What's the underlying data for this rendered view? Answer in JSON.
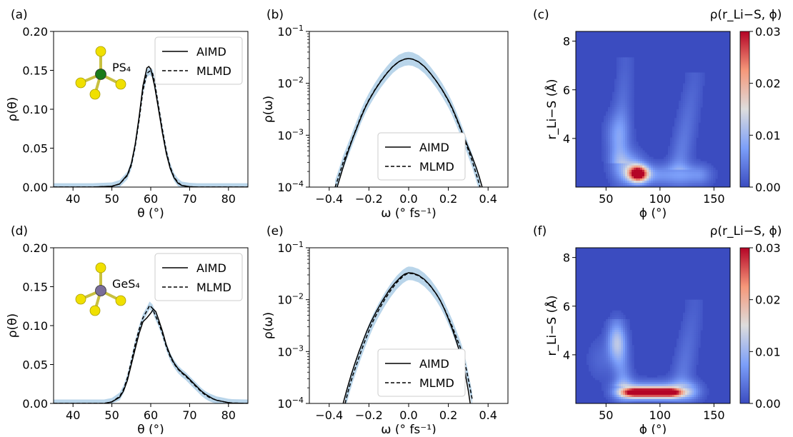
{
  "colors": {
    "aimd": "#000000",
    "mlmd": "#000000",
    "uncertainty_band": "#7fb3d8",
    "heatmap_low": "#3b4cc0",
    "heatmap_mid": "#dddddd",
    "heatmap_high": "#b40426",
    "sulfur_atom": "#f0e000",
    "phosphorus_atom": "#1a7a1a",
    "germanium_atom": "#7a6e9a"
  },
  "chart_data": [
    {
      "id": "a",
      "panel_label": "(a)",
      "type": "line",
      "xlabel": "θ (°)",
      "ylabel": "ρ(θ)",
      "xlim": [
        35,
        85
      ],
      "ylim": [
        0,
        0.2
      ],
      "xticks": [
        40,
        50,
        60,
        70,
        80
      ],
      "yticks": [
        0.0,
        0.05,
        0.1,
        0.15,
        0.2
      ],
      "xtick_labels": [
        "40",
        "50",
        "60",
        "70",
        "80"
      ],
      "ytick_labels": [
        "0.00",
        "0.05",
        "0.10",
        "0.15",
        "0.20"
      ],
      "molecule_label": "PS₄",
      "molecule_center": "phosphorus",
      "legend": {
        "position": "top-right",
        "entries": [
          "AIMD",
          "MLMD"
        ]
      },
      "series": [
        {
          "name": "AIMD",
          "style": "solid",
          "x": [
            35,
            45,
            50,
            52,
            54,
            55,
            56,
            57,
            58,
            59,
            59.5,
            60,
            61,
            62,
            63,
            64,
            65,
            66,
            67,
            68,
            70,
            72,
            85
          ],
          "y": [
            0,
            0,
            0.001,
            0.004,
            0.016,
            0.03,
            0.055,
            0.09,
            0.13,
            0.153,
            0.155,
            0.152,
            0.13,
            0.1,
            0.07,
            0.043,
            0.024,
            0.012,
            0.005,
            0.002,
            0.0005,
            0,
            0
          ]
        },
        {
          "name": "MLMD",
          "style": "dashed",
          "x": [
            35,
            45,
            50,
            52,
            54,
            55,
            56,
            57,
            58,
            59,
            59.7,
            60.5,
            61,
            62,
            63,
            64,
            65,
            66,
            67,
            68,
            70,
            72,
            85
          ],
          "y": [
            0,
            0,
            0.001,
            0.004,
            0.015,
            0.028,
            0.052,
            0.086,
            0.124,
            0.146,
            0.149,
            0.146,
            0.135,
            0.104,
            0.074,
            0.046,
            0.026,
            0.013,
            0.006,
            0.002,
            0.0005,
            0,
            0
          ]
        }
      ]
    },
    {
      "id": "b",
      "panel_label": "(b)",
      "type": "line",
      "yscale": "log",
      "xlabel": "ω (° fs⁻¹)",
      "ylabel": "ρ(ω)",
      "xlim": [
        -0.5,
        0.5
      ],
      "ylim": [
        0.0001,
        0.1
      ],
      "xticks": [
        -0.4,
        -0.2,
        0.0,
        0.2,
        0.4
      ],
      "xtick_labels": [
        "−0.4",
        "−0.2",
        "0.0",
        "0.2",
        "0.4"
      ],
      "yticks": [
        0.0001,
        0.001,
        0.01,
        0.1
      ],
      "ytick_base": "10",
      "ytick_exponents": [
        "−4",
        "−3",
        "−2",
        "−1"
      ],
      "legend": {
        "position": "lower-center",
        "entries": [
          "AIMD",
          "MLMD"
        ]
      },
      "series": [
        {
          "name": "AIMD",
          "style": "solid",
          "x": [
            -0.36,
            -0.34,
            -0.32,
            -0.3,
            -0.28,
            -0.26,
            -0.24,
            -0.22,
            -0.2,
            -0.17,
            -0.14,
            -0.11,
            -0.08,
            -0.05,
            -0.02,
            0.0,
            0.02,
            0.05,
            0.08,
            0.11,
            0.14,
            0.17,
            0.2,
            0.22,
            0.24,
            0.26,
            0.28,
            0.3,
            0.32,
            0.34,
            0.355,
            0.37
          ],
          "y": [
            0.0001,
            0.00018,
            0.00032,
            0.00055,
            0.0009,
            0.0014,
            0.0022,
            0.0033,
            0.0047,
            0.0074,
            0.011,
            0.0155,
            0.021,
            0.026,
            0.0292,
            0.03,
            0.0292,
            0.026,
            0.021,
            0.0155,
            0.011,
            0.0074,
            0.0047,
            0.0033,
            0.0022,
            0.0014,
            0.0009,
            0.00058,
            0.00038,
            0.00024,
            0.00016,
            0.0001
          ]
        },
        {
          "name": "MLMD",
          "style": "dashed",
          "x": [
            -0.37,
            -0.35,
            -0.33,
            -0.3,
            -0.28,
            -0.26,
            -0.24,
            -0.22,
            -0.2,
            -0.17,
            -0.14,
            -0.11,
            -0.08,
            -0.05,
            -0.02,
            0.0,
            0.02,
            0.05,
            0.08,
            0.11,
            0.14,
            0.17,
            0.2,
            0.22,
            0.24,
            0.26,
            0.28,
            0.3,
            0.32,
            0.34,
            0.36
          ],
          "y": [
            0.0001,
            0.00017,
            0.0003,
            0.00058,
            0.00093,
            0.00145,
            0.0023,
            0.0034,
            0.0048,
            0.0075,
            0.0112,
            0.0157,
            0.0212,
            0.0262,
            0.0293,
            0.03,
            0.0292,
            0.0259,
            0.0209,
            0.0154,
            0.0109,
            0.0073,
            0.0046,
            0.0032,
            0.0021,
            0.00135,
            0.00085,
            0.00052,
            0.00032,
            0.00018,
            0.0001
          ]
        }
      ]
    },
    {
      "id": "c",
      "panel_label": "(c)",
      "type": "heatmap",
      "xlabel": "ϕ (°)",
      "ylabel": "r_Li−S (Å)",
      "xlim": [
        22,
        165
      ],
      "ylim": [
        2.0,
        8.4
      ],
      "xticks": [
        50,
        100,
        150
      ],
      "xtick_labels": [
        "50",
        "100",
        "150"
      ],
      "yticks": [
        4,
        6,
        8
      ],
      "ytick_labels": [
        "4",
        "6",
        "8"
      ],
      "colorbar": {
        "title": "ρ(r_Li−S, ϕ)",
        "range": [
          0,
          0.03
        ],
        "ticks": [
          0.0,
          0.01,
          0.02,
          0.03
        ],
        "tick_labels": [
          "0.00",
          "0.01",
          "0.02",
          "0.03"
        ]
      },
      "features": [
        {
          "kind": "blob",
          "phi": 80,
          "r": 2.55,
          "sphi": 6,
          "sr": 0.22,
          "amp": 1.0
        },
        {
          "kind": "blob",
          "phi": 70,
          "r": 2.85,
          "sphi": 10,
          "sr": 0.45,
          "amp": 0.28
        },
        {
          "kind": "band",
          "phi0": 80,
          "phi1": 135,
          "r": 2.5,
          "sr": 0.3,
          "amp": 0.22
        },
        {
          "kind": "arm",
          "from": [
            62,
            3.3
          ],
          "to": [
            68,
            7.0
          ],
          "width": 6,
          "amp": 0.16
        },
        {
          "kind": "arm",
          "from": [
            118,
            3.0
          ],
          "to": [
            132,
            6.4
          ],
          "width": 7,
          "amp": 0.16
        },
        {
          "kind": "blob",
          "phi": 60,
          "r": 4.2,
          "sphi": 8,
          "sr": 0.6,
          "amp": 0.15
        }
      ]
    },
    {
      "id": "d",
      "panel_label": "(d)",
      "type": "line",
      "xlabel": "θ (°)",
      "ylabel": "ρ(θ)",
      "xlim": [
        35,
        85
      ],
      "ylim": [
        0,
        0.2
      ],
      "xticks": [
        40,
        50,
        60,
        70,
        80
      ],
      "yticks": [
        0.0,
        0.05,
        0.1,
        0.15,
        0.2
      ],
      "xtick_labels": [
        "40",
        "50",
        "60",
        "70",
        "80"
      ],
      "ytick_labels": [
        "0.00",
        "0.05",
        "0.10",
        "0.15",
        "0.20"
      ],
      "molecule_label": "GeS₄",
      "molecule_center": "germanium",
      "legend": {
        "position": "top-right",
        "entries": [
          "AIMD",
          "MLMD"
        ]
      },
      "series": [
        {
          "name": "AIMD",
          "style": "solid",
          "x": [
            35,
            48,
            50,
            52,
            53,
            54,
            55,
            56,
            57,
            58,
            59,
            60,
            60.7,
            61.3,
            62,
            63,
            64,
            65,
            66,
            67,
            68,
            69,
            70,
            71,
            72,
            73,
            74,
            75,
            76,
            77,
            78,
            79,
            80,
            81,
            85
          ],
          "y": [
            0,
            0,
            0.002,
            0.008,
            0.016,
            0.03,
            0.05,
            0.07,
            0.09,
            0.105,
            0.11,
            0.116,
            0.121,
            0.118,
            0.108,
            0.093,
            0.075,
            0.062,
            0.052,
            0.045,
            0.04,
            0.036,
            0.031,
            0.026,
            0.021,
            0.016,
            0.012,
            0.009,
            0.006,
            0.004,
            0.003,
            0.002,
            0.001,
            0.0005,
            0
          ]
        },
        {
          "name": "MLMD",
          "style": "dashed",
          "x": [
            35,
            48,
            50,
            52,
            53,
            54,
            55,
            56,
            57,
            58,
            59,
            59.7,
            60.5,
            61,
            62,
            63,
            64,
            65,
            66,
            67,
            68,
            69,
            70,
            71,
            72,
            73,
            74,
            75,
            76,
            77,
            78,
            79,
            80,
            81,
            85
          ],
          "y": [
            0,
            0,
            0.002,
            0.009,
            0.018,
            0.033,
            0.054,
            0.076,
            0.095,
            0.11,
            0.119,
            0.126,
            0.122,
            0.115,
            0.104,
            0.09,
            0.073,
            0.06,
            0.051,
            0.044,
            0.039,
            0.035,
            0.03,
            0.025,
            0.02,
            0.015,
            0.011,
            0.008,
            0.006,
            0.004,
            0.003,
            0.002,
            0.001,
            0.0005,
            0
          ]
        }
      ]
    },
    {
      "id": "e",
      "panel_label": "(e)",
      "type": "line",
      "yscale": "log",
      "xlabel": "ω (° fs⁻¹)",
      "ylabel": "ρ(ω)",
      "xlim": [
        -0.5,
        0.5
      ],
      "ylim": [
        0.0001,
        0.1
      ],
      "xticks": [
        -0.4,
        -0.2,
        0.0,
        0.2,
        0.4
      ],
      "xtick_labels": [
        "−0.4",
        "−0.2",
        "0.0",
        "0.2",
        "0.4"
      ],
      "yticks": [
        0.0001,
        0.001,
        0.01,
        0.1
      ],
      "ytick_base": "10",
      "ytick_exponents": [
        "−4",
        "−3",
        "−2",
        "−1"
      ],
      "legend": {
        "position": "lower-center",
        "entries": [
          "AIMD",
          "MLMD"
        ]
      },
      "series": [
        {
          "name": "AIMD",
          "style": "solid",
          "x": [
            -0.33,
            -0.31,
            -0.29,
            -0.27,
            -0.25,
            -0.23,
            -0.21,
            -0.19,
            -0.16,
            -0.13,
            -0.1,
            -0.07,
            -0.04,
            -0.02,
            0.0,
            0.02,
            0.05,
            0.08,
            0.11,
            0.14,
            0.16,
            0.18,
            0.2,
            0.22,
            0.24,
            0.26,
            0.28,
            0.3,
            0.31
          ],
          "y": [
            0.0001,
            0.00019,
            0.00035,
            0.0006,
            0.001,
            0.0016,
            0.0025,
            0.0037,
            0.0062,
            0.0098,
            0.0148,
            0.0208,
            0.0272,
            0.0312,
            0.033,
            0.0325,
            0.0295,
            0.0245,
            0.0185,
            0.0128,
            0.0095,
            0.0066,
            0.0043,
            0.0027,
            0.0016,
            0.0009,
            0.00048,
            0.00018,
            0.0001
          ]
        },
        {
          "name": "MLMD",
          "style": "dashed",
          "x": [
            -0.32,
            -0.3,
            -0.28,
            -0.26,
            -0.24,
            -0.22,
            -0.2,
            -0.18,
            -0.15,
            -0.12,
            -0.09,
            -0.06,
            -0.03,
            -0.01,
            0.0,
            0.02,
            0.05,
            0.08,
            0.11,
            0.14,
            0.16,
            0.18,
            0.2,
            0.22,
            0.24,
            0.26,
            0.28,
            0.3,
            0.32
          ],
          "y": [
            0.0001,
            0.0002,
            0.00036,
            0.0006,
            0.001,
            0.0016,
            0.0025,
            0.0038,
            0.0064,
            0.0101,
            0.0152,
            0.0214,
            0.0278,
            0.0312,
            0.0322,
            0.0318,
            0.029,
            0.024,
            0.0182,
            0.0127,
            0.0095,
            0.0067,
            0.0045,
            0.003,
            0.0019,
            0.0012,
            0.0007,
            0.0003,
            0.00012
          ]
        }
      ]
    },
    {
      "id": "f",
      "panel_label": "(f)",
      "type": "heatmap",
      "xlabel": "ϕ (°)",
      "ylabel": "r_Li−S (Å)",
      "xlim": [
        22,
        165
      ],
      "ylim": [
        2.0,
        8.4
      ],
      "xticks": [
        50,
        100,
        150
      ],
      "xtick_labels": [
        "50",
        "100",
        "150"
      ],
      "yticks": [
        4,
        6,
        8
      ],
      "ytick_labels": [
        "4",
        "6",
        "8"
      ],
      "colorbar": {
        "title": "ρ(r_Li−S, ϕ)",
        "range": [
          0,
          0.03
        ],
        "ticks": [
          0.0,
          0.01,
          0.02,
          0.03
        ],
        "tick_labels": [
          "0.00",
          "0.01",
          "0.02",
          "0.03"
        ]
      },
      "features": [
        {
          "kind": "band",
          "phi0": 78,
          "phi1": 108,
          "r": 2.45,
          "sr": 0.14,
          "amp": 1.0
        },
        {
          "kind": "band",
          "phi0": 68,
          "phi1": 125,
          "r": 2.5,
          "sr": 0.28,
          "amp": 0.32
        },
        {
          "kind": "blob",
          "phi": 60,
          "r": 4.5,
          "sphi": 6,
          "sr": 0.55,
          "amp": 0.3
        },
        {
          "kind": "arm",
          "from": [
            66,
            3.0
          ],
          "to": [
            60,
            5.2
          ],
          "width": 6,
          "amp": 0.2
        },
        {
          "kind": "arm",
          "from": [
            120,
            3.0
          ],
          "to": [
            132,
            6.0
          ],
          "width": 7,
          "amp": 0.14
        },
        {
          "kind": "blob",
          "phi": 45,
          "r": 3.8,
          "sphi": 9,
          "sr": 0.6,
          "amp": 0.08
        }
      ]
    }
  ]
}
